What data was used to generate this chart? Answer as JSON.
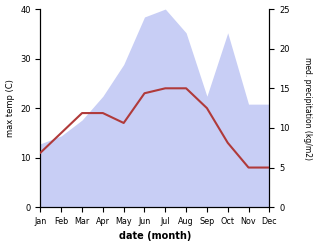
{
  "months": [
    "Jan",
    "Feb",
    "Mar",
    "Apr",
    "May",
    "Jun",
    "Jul",
    "Aug",
    "Sep",
    "Oct",
    "Nov",
    "Dec"
  ],
  "temp": [
    11,
    15,
    19,
    19,
    17,
    23,
    24,
    24,
    20,
    13,
    8,
    8
  ],
  "precip": [
    8,
    9,
    11,
    14,
    18,
    24,
    25,
    22,
    14,
    22,
    13,
    13
  ],
  "temp_color": "#b03a3a",
  "precip_fill_color": "#c8cef5",
  "temp_ylim": [
    0,
    40
  ],
  "precip_ylim": [
    0,
    25
  ],
  "temp_yticks": [
    0,
    10,
    20,
    30,
    40
  ],
  "precip_yticks": [
    0,
    5,
    10,
    15,
    20,
    25
  ],
  "xlabel": "date (month)",
  "ylabel_left": "max temp (C)",
  "ylabel_right": "med. precipitation (kg/m2)"
}
